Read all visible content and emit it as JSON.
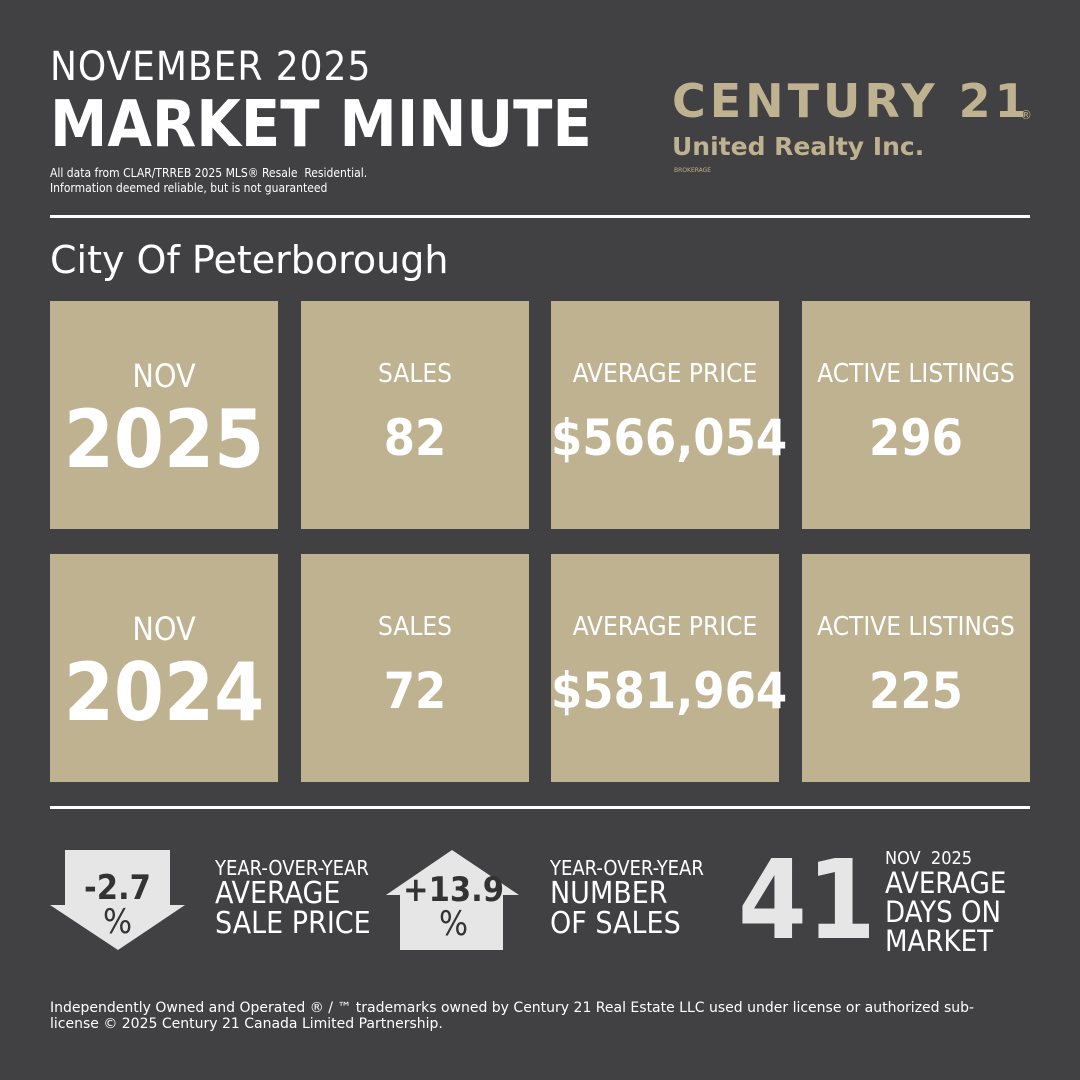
{
  "header": {
    "month": "NOVEMBER 2025",
    "title": "MARKET MINUTE",
    "disclaimer": [
      "All data from CLAR/TRREB 2025 MLS® Resale  Residential.",
      "Information deemed reliable, but is not guaranteed"
    ]
  },
  "brand": {
    "name": "CENTURY 21",
    "registered": "®",
    "office": "United Realty Inc.",
    "brokerage": "BROKERAGE"
  },
  "city": "City Of Peterborough",
  "periods": [
    {
      "month": "NOV",
      "year": "2025",
      "stats": [
        {
          "label": "SALES",
          "value": "82"
        },
        {
          "label": "AVERAGE PRICE",
          "value": "$566,054"
        },
        {
          "label": "ACTIVE LISTINGS",
          "value": "296"
        }
      ]
    },
    {
      "month": "NOV",
      "year": "2024",
      "stats": [
        {
          "label": "SALES",
          "value": "72"
        },
        {
          "label": "AVERAGE PRICE",
          "value": "$581,964"
        },
        {
          "label": "ACTIVE LISTINGS",
          "value": "225"
        }
      ]
    }
  ],
  "summary": [
    {
      "change": "-2.7",
      "unit": "%",
      "direction": "down",
      "kicker": "YEAR-OVER-YEAR",
      "label": [
        "AVERAGE",
        "SALE PRICE"
      ]
    },
    {
      "change": "+13.9",
      "unit": "%",
      "direction": "up",
      "kicker": "YEAR-OVER-YEAR",
      "label": [
        "NUMBER",
        "OF SALES"
      ]
    },
    {
      "value": "41",
      "kicker": "NOV  2025",
      "label": [
        "AVERAGE",
        "DAYS ON",
        "MARKET"
      ]
    }
  ],
  "footer": "Independently Owned and Operated ® / ™ trademarks owned by Century 21 Real Estate LLC used under license or authorized sub-license © 2025 Century 21 Canada Limited Partnership."
}
